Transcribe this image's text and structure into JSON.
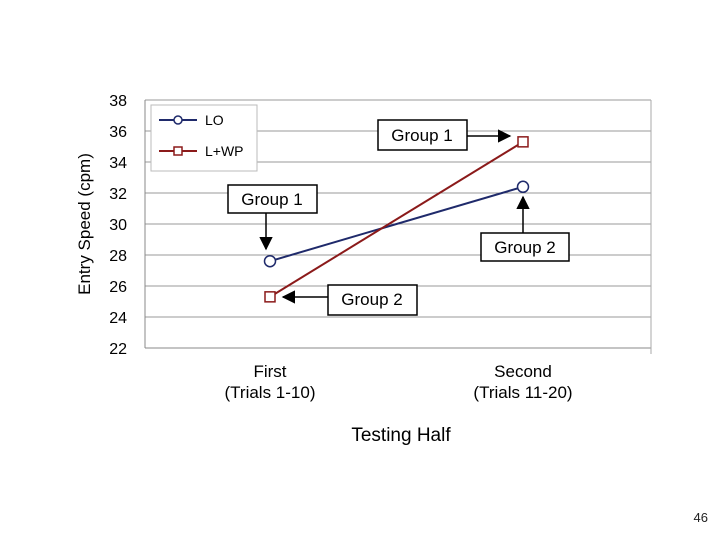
{
  "chart_data": {
    "type": "line",
    "title": "",
    "xlabel": "Testing Half",
    "ylabel": "Entry Speed (cpm)",
    "ylim": [
      22,
      38
    ],
    "yticks": [
      22,
      24,
      26,
      28,
      30,
      32,
      34,
      36,
      38
    ],
    "grid": true,
    "categories": [
      [
        "First",
        "(Trials 1-10)"
      ],
      [
        "Second",
        "(Trials 11-20)"
      ]
    ],
    "series": [
      {
        "name": "LO",
        "marker": "circle",
        "color": "#1f2a6b",
        "values": [
          27.6,
          32.4
        ]
      },
      {
        "name": "L+WP",
        "marker": "square",
        "color": "#8b1a1a",
        "values": [
          25.3,
          35.3
        ]
      }
    ],
    "legend": "top-left",
    "annotations": [
      {
        "text": "Group 1",
        "series": "L+WP",
        "point": "second"
      },
      {
        "text": "Group 1",
        "series": "LO",
        "point": "first"
      },
      {
        "text": "Group 2",
        "series": "LO",
        "point": "second"
      },
      {
        "text": "Group 2",
        "series": "L+WP",
        "point": "first"
      }
    ]
  },
  "slide_number": "46"
}
